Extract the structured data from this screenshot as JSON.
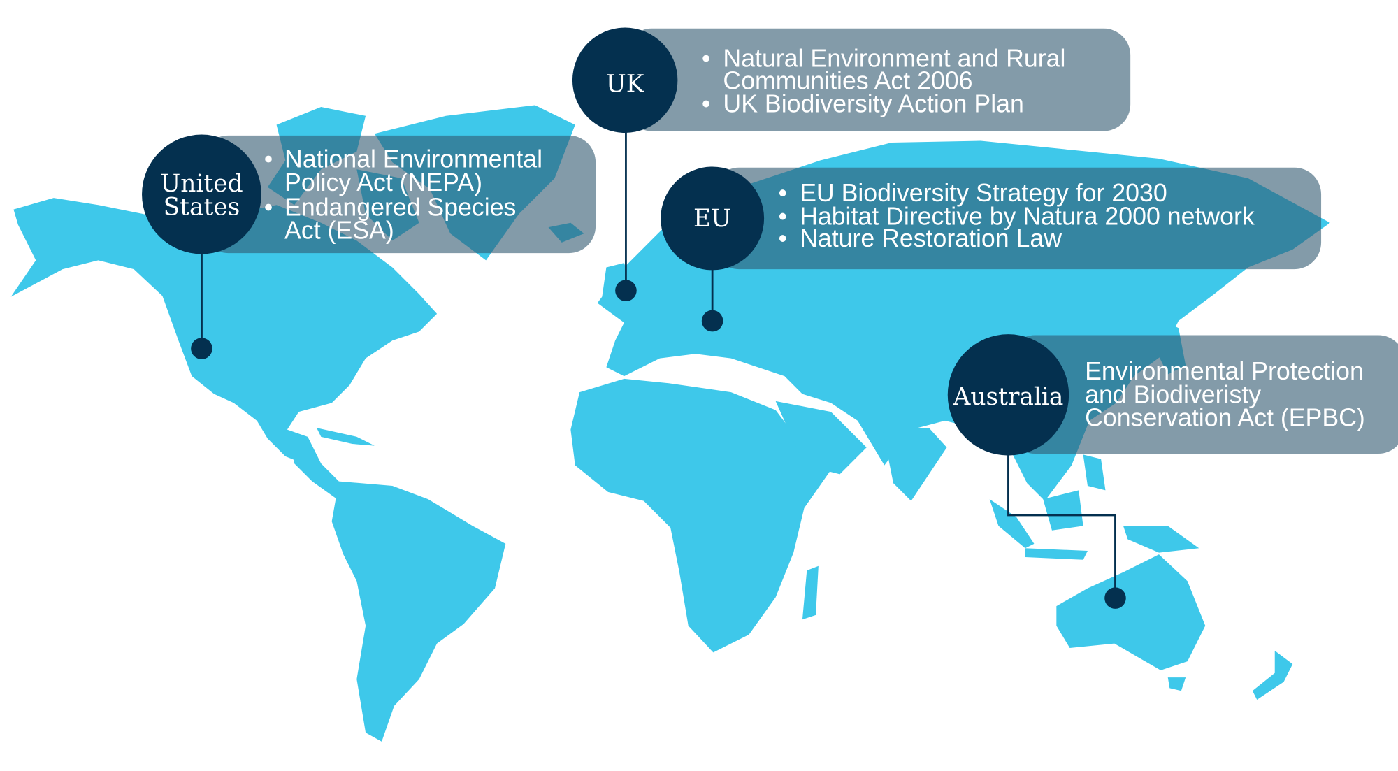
{
  "colors": {
    "land": "#3ec8ea",
    "circle": "#04304f",
    "pill": "#7f9aa8"
  },
  "regions": {
    "us": {
      "label": [
        "United",
        "States"
      ],
      "items": [
        "National Environmental",
        "Policy Act (NEPA)",
        "Endangered Species",
        "Act (ESA)"
      ]
    },
    "uk": {
      "label": "UK",
      "items": [
        "Natural Environment and Rural",
        "Communities Act 2006",
        "UK Biodiversity Action Plan"
      ]
    },
    "eu": {
      "label": "EU",
      "items": [
        "EU Biodiversity Strategy for 2030",
        "Habitat Directive by Natura 2000 network",
        "Nature Restoration Law"
      ]
    },
    "au": {
      "label": "Australia",
      "items": [
        "Environmental Protection",
        "and Biodiveristy",
        "Conservation Act (EPBC)"
      ]
    }
  },
  "bullet": "•"
}
